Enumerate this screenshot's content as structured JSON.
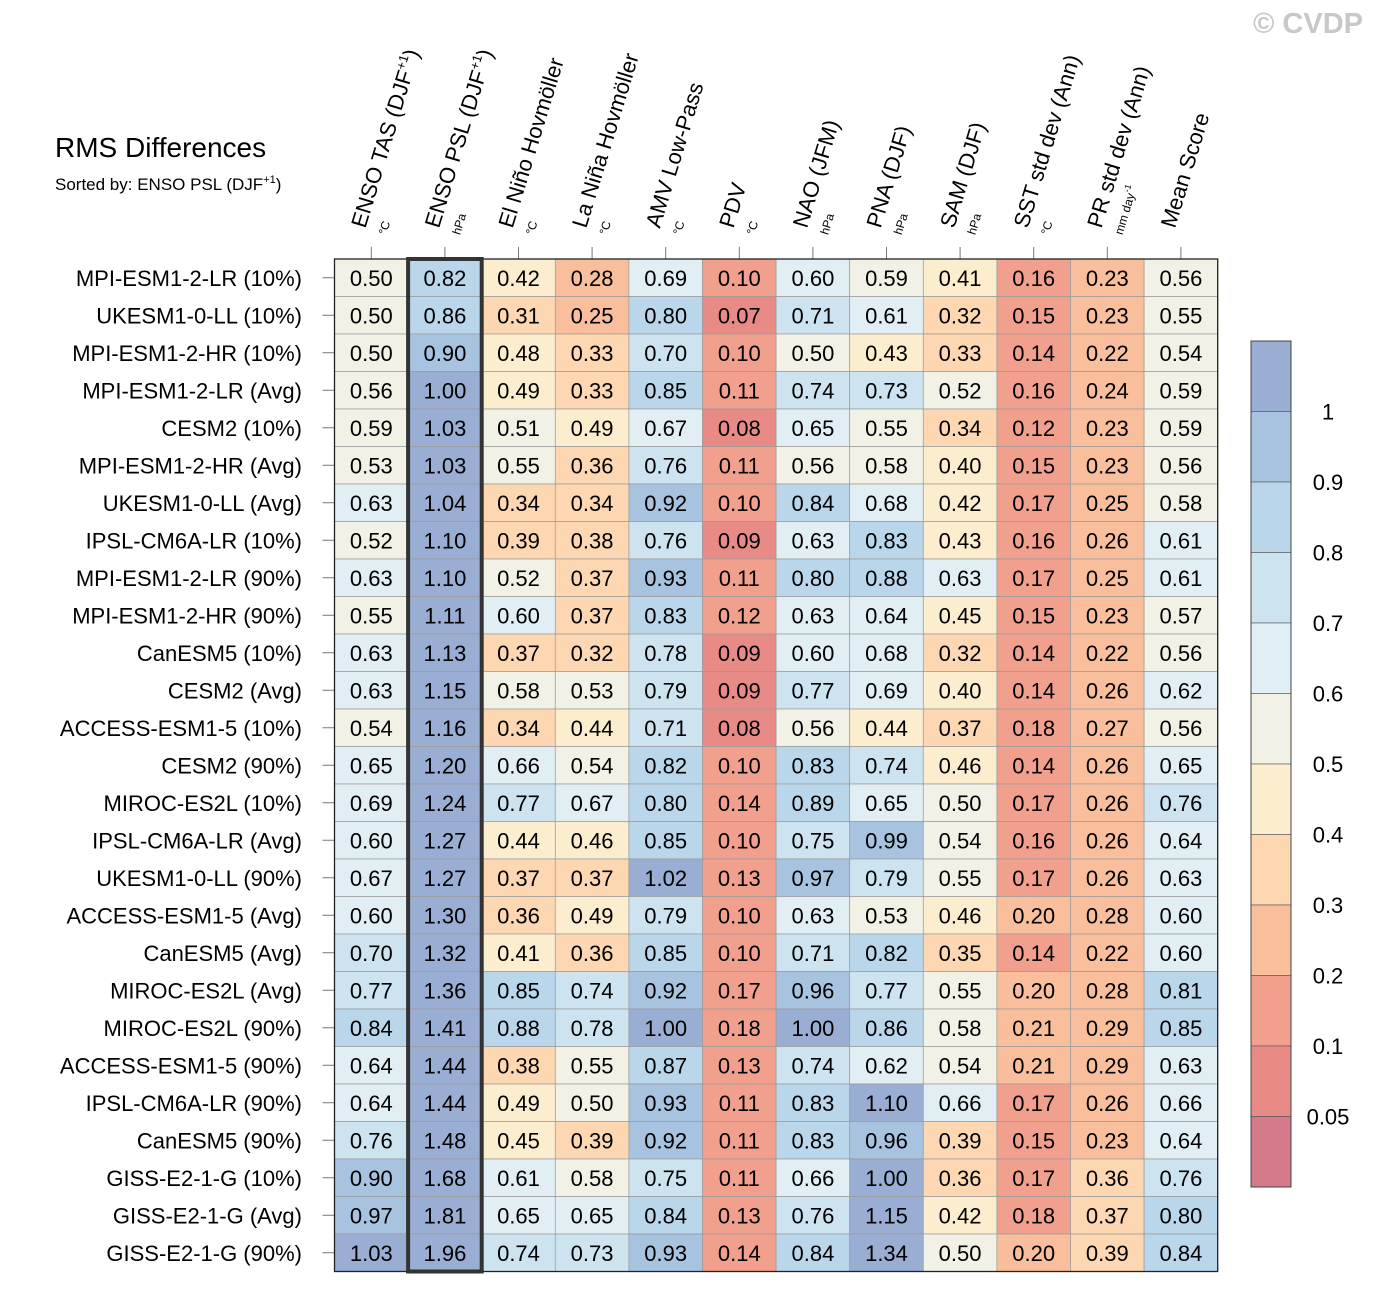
{
  "watermark": "© CVDP",
  "chart_data": {
    "type": "heatmap",
    "title": "RMS Differences",
    "subtitle": {
      "prefix": "Sorted by: ENSO PSL (DJF",
      "sup": "+1",
      "suffix": ")"
    },
    "highlighted_column": 1,
    "columns": [
      {
        "label": "ENSO TAS (DJF",
        "sup": "+1",
        "after": ")",
        "unit": "°C"
      },
      {
        "label": "ENSO PSL (DJF",
        "sup": "+1",
        "after": ")",
        "unit": "hPa"
      },
      {
        "label": "El Niño Hovmöller",
        "unit": "°C"
      },
      {
        "label": "La Niña Hovmöller",
        "unit": "°C"
      },
      {
        "label": "AMV Low-Pass",
        "unit": "°C"
      },
      {
        "label": "PDV",
        "unit": "°C"
      },
      {
        "label": "NAO (JFM)",
        "unit": "hPa"
      },
      {
        "label": "PNA (DJF)",
        "unit": "hPa"
      },
      {
        "label": "SAM (DJF)",
        "unit": "hPa"
      },
      {
        "label": "SST std dev (Ann)",
        "unit": "°C"
      },
      {
        "label": "PR std dev (Ann)",
        "unit": "mm day",
        "unit_sup": "-1"
      },
      {
        "label": "Mean Score",
        "unit": ""
      }
    ],
    "rows": [
      "MPI-ESM1-2-LR (10%)",
      "UKESM1-0-LL (10%)",
      "MPI-ESM1-2-HR (10%)",
      "MPI-ESM1-2-LR (Avg)",
      "CESM2 (10%)",
      "MPI-ESM1-2-HR (Avg)",
      "UKESM1-0-LL (Avg)",
      "IPSL-CM6A-LR (10%)",
      "MPI-ESM1-2-LR (90%)",
      "MPI-ESM1-2-HR (90%)",
      "CanESM5 (10%)",
      "CESM2 (Avg)",
      "ACCESS-ESM1-5 (10%)",
      "CESM2 (90%)",
      "MIROC-ES2L (10%)",
      "IPSL-CM6A-LR (Avg)",
      "UKESM1-0-LL (90%)",
      "ACCESS-ESM1-5 (Avg)",
      "CanESM5 (Avg)",
      "MIROC-ES2L (Avg)",
      "MIROC-ES2L (90%)",
      "ACCESS-ESM1-5 (90%)",
      "IPSL-CM6A-LR (90%)",
      "CanESM5 (90%)",
      "GISS-E2-1-G (10%)",
      "GISS-E2-1-G (Avg)",
      "GISS-E2-1-G (90%)"
    ],
    "values": [
      [
        "0.50",
        "0.82",
        "0.42",
        "0.28",
        "0.69",
        "0.10",
        "0.60",
        "0.59",
        "0.41",
        "0.16",
        "0.23",
        "0.56"
      ],
      [
        "0.50",
        "0.86",
        "0.31",
        "0.25",
        "0.80",
        "0.07",
        "0.71",
        "0.61",
        "0.32",
        "0.15",
        "0.23",
        "0.55"
      ],
      [
        "0.50",
        "0.90",
        "0.48",
        "0.33",
        "0.70",
        "0.10",
        "0.50",
        "0.43",
        "0.33",
        "0.14",
        "0.22",
        "0.54"
      ],
      [
        "0.56",
        "1.00",
        "0.49",
        "0.33",
        "0.85",
        "0.11",
        "0.74",
        "0.73",
        "0.52",
        "0.16",
        "0.24",
        "0.59"
      ],
      [
        "0.59",
        "1.03",
        "0.51",
        "0.49",
        "0.67",
        "0.08",
        "0.65",
        "0.55",
        "0.34",
        "0.12",
        "0.23",
        "0.59"
      ],
      [
        "0.53",
        "1.03",
        "0.55",
        "0.36",
        "0.76",
        "0.11",
        "0.56",
        "0.58",
        "0.40",
        "0.15",
        "0.23",
        "0.56"
      ],
      [
        "0.63",
        "1.04",
        "0.34",
        "0.34",
        "0.92",
        "0.10",
        "0.84",
        "0.68",
        "0.42",
        "0.17",
        "0.25",
        "0.58"
      ],
      [
        "0.52",
        "1.10",
        "0.39",
        "0.38",
        "0.76",
        "0.09",
        "0.63",
        "0.83",
        "0.43",
        "0.16",
        "0.26",
        "0.61"
      ],
      [
        "0.63",
        "1.10",
        "0.52",
        "0.37",
        "0.93",
        "0.11",
        "0.80",
        "0.88",
        "0.63",
        "0.17",
        "0.25",
        "0.61"
      ],
      [
        "0.55",
        "1.11",
        "0.60",
        "0.37",
        "0.83",
        "0.12",
        "0.63",
        "0.64",
        "0.45",
        "0.15",
        "0.23",
        "0.57"
      ],
      [
        "0.63",
        "1.13",
        "0.37",
        "0.32",
        "0.78",
        "0.09",
        "0.60",
        "0.68",
        "0.32",
        "0.14",
        "0.22",
        "0.56"
      ],
      [
        "0.63",
        "1.15",
        "0.58",
        "0.53",
        "0.79",
        "0.09",
        "0.77",
        "0.69",
        "0.40",
        "0.14",
        "0.26",
        "0.62"
      ],
      [
        "0.54",
        "1.16",
        "0.34",
        "0.44",
        "0.71",
        "0.08",
        "0.56",
        "0.44",
        "0.37",
        "0.18",
        "0.27",
        "0.56"
      ],
      [
        "0.65",
        "1.20",
        "0.66",
        "0.54",
        "0.82",
        "0.10",
        "0.83",
        "0.74",
        "0.46",
        "0.14",
        "0.26",
        "0.65"
      ],
      [
        "0.69",
        "1.24",
        "0.77",
        "0.67",
        "0.80",
        "0.14",
        "0.89",
        "0.65",
        "0.50",
        "0.17",
        "0.26",
        "0.76"
      ],
      [
        "0.60",
        "1.27",
        "0.44",
        "0.46",
        "0.85",
        "0.10",
        "0.75",
        "0.99",
        "0.54",
        "0.16",
        "0.26",
        "0.64"
      ],
      [
        "0.67",
        "1.27",
        "0.37",
        "0.37",
        "1.02",
        "0.13",
        "0.97",
        "0.79",
        "0.55",
        "0.17",
        "0.26",
        "0.63"
      ],
      [
        "0.60",
        "1.30",
        "0.36",
        "0.49",
        "0.79",
        "0.10",
        "0.63",
        "0.53",
        "0.46",
        "0.20",
        "0.28",
        "0.60"
      ],
      [
        "0.70",
        "1.32",
        "0.41",
        "0.36",
        "0.85",
        "0.10",
        "0.71",
        "0.82",
        "0.35",
        "0.14",
        "0.22",
        "0.60"
      ],
      [
        "0.77",
        "1.36",
        "0.85",
        "0.74",
        "0.92",
        "0.17",
        "0.96",
        "0.77",
        "0.55",
        "0.20",
        "0.28",
        "0.81"
      ],
      [
        "0.84",
        "1.41",
        "0.88",
        "0.78",
        "1.00",
        "0.18",
        "1.00",
        "0.86",
        "0.58",
        "0.21",
        "0.29",
        "0.85"
      ],
      [
        "0.64",
        "1.44",
        "0.38",
        "0.55",
        "0.87",
        "0.13",
        "0.74",
        "0.62",
        "0.54",
        "0.21",
        "0.29",
        "0.63"
      ],
      [
        "0.64",
        "1.44",
        "0.49",
        "0.50",
        "0.93",
        "0.11",
        "0.83",
        "1.10",
        "0.66",
        "0.17",
        "0.26",
        "0.66"
      ],
      [
        "0.76",
        "1.48",
        "0.45",
        "0.39",
        "0.92",
        "0.11",
        "0.83",
        "0.96",
        "0.39",
        "0.15",
        "0.23",
        "0.64"
      ],
      [
        "0.90",
        "1.68",
        "0.61",
        "0.58",
        "0.75",
        "0.11",
        "0.66",
        "1.00",
        "0.36",
        "0.17",
        "0.36",
        "0.76"
      ],
      [
        "0.97",
        "1.81",
        "0.65",
        "0.65",
        "0.84",
        "0.13",
        "0.76",
        "1.15",
        "0.42",
        "0.18",
        "0.37",
        "0.80"
      ],
      [
        "1.03",
        "1.96",
        "0.74",
        "0.73",
        "0.93",
        "0.14",
        "0.84",
        "1.34",
        "0.50",
        "0.20",
        "0.39",
        "0.84"
      ]
    ],
    "colorbar": {
      "labels": [
        "1",
        "0.9",
        "0.8",
        "0.7",
        "0.6",
        "0.5",
        "0.4",
        "0.3",
        "0.2",
        "0.1",
        "0.05"
      ],
      "thresholds": [
        1.0,
        0.9,
        0.8,
        0.7,
        0.6,
        0.5,
        0.4,
        0.3,
        0.2,
        0.1,
        0.05
      ],
      "colors": [
        "#9aaed3",
        "#a8c3e0",
        "#bad6ea",
        "#cde3ef",
        "#e1eef4",
        "#f2f1e6",
        "#fcedcf",
        "#fcd7b1",
        "#f9bf9d",
        "#f1a08e",
        "#e88b87",
        "#d47a8b"
      ]
    }
  }
}
